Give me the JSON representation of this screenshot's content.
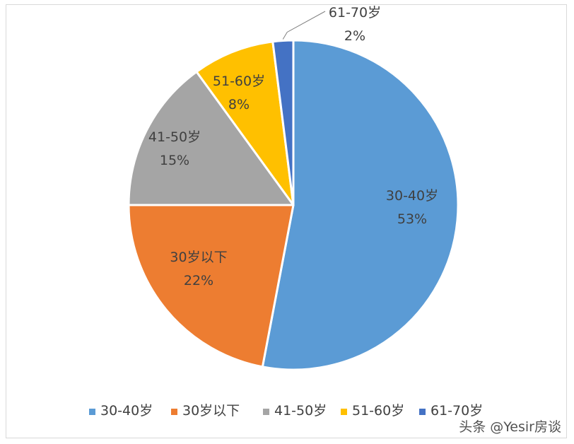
{
  "chart_data": {
    "type": "pie",
    "title": "",
    "slices": [
      {
        "label": "30-40岁",
        "percent_text": "53%",
        "value": 53,
        "color": "#5b9bd5"
      },
      {
        "label": "30岁以下",
        "percent_text": "22%",
        "value": 22,
        "color": "#ed7d31"
      },
      {
        "label": "41-50岁",
        "percent_text": "15%",
        "value": 15,
        "color": "#a5a5a5"
      },
      {
        "label": "51-60岁",
        "percent_text": "8%",
        "value": 8,
        "color": "#ffc000"
      },
      {
        "label": "61-70岁",
        "percent_text": "2%",
        "value": 2,
        "color": "#4472c4"
      }
    ],
    "legend_position": "bottom"
  },
  "watermark": "头条 @Yesir房谈"
}
